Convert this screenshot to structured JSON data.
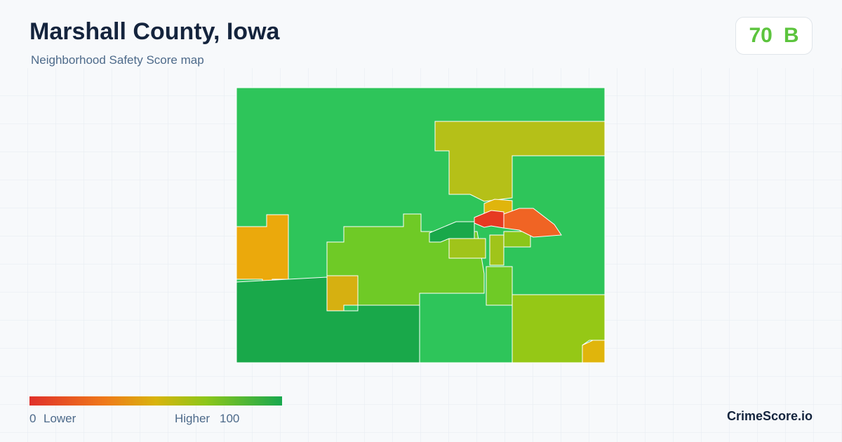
{
  "header": {
    "title": "Marshall County, Iowa",
    "subtitle": "Neighborhood Safety Score map",
    "score": 70,
    "grade": "B"
  },
  "legend": {
    "min": 0,
    "low_label": "Lower",
    "high_label": "Higher",
    "max": 100
  },
  "footer": {
    "brand": "CrimeScore.io"
  }
}
